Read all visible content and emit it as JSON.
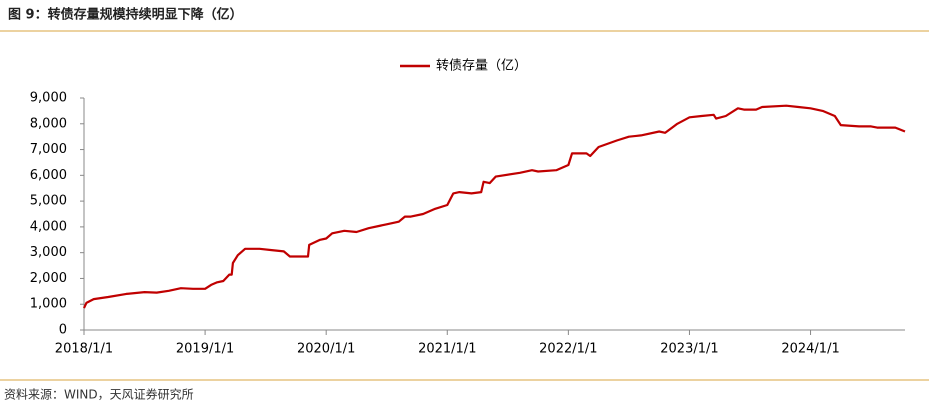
{
  "chart_data": {
    "type": "line",
    "title": "图 9：转债存量规模持续明显下降（亿）",
    "source": "资料来源：WIND，天风证券研究所",
    "x": [
      2018.0,
      2018.02,
      2018.08,
      2018.2,
      2018.35,
      2018.5,
      2018.6,
      2018.7,
      2018.8,
      2018.9,
      2019.0,
      2019.05,
      2019.1,
      2019.15,
      2019.2,
      2019.22,
      2019.23,
      2019.27,
      2019.33,
      2019.45,
      2019.55,
      2019.65,
      2019.7,
      2019.85,
      2019.86,
      2019.95,
      2020.0,
      2020.05,
      2020.15,
      2020.25,
      2020.35,
      2020.5,
      2020.6,
      2020.65,
      2020.7,
      2020.8,
      2020.9,
      2021.0,
      2021.05,
      2021.1,
      2021.2,
      2021.28,
      2021.3,
      2021.35,
      2021.4,
      2021.6,
      2021.7,
      2021.75,
      2021.9,
      2021.95,
      2022.0,
      2022.03,
      2022.15,
      2022.18,
      2022.25,
      2022.4,
      2022.5,
      2022.6,
      2022.75,
      2022.8,
      2022.9,
      2023.0,
      2023.1,
      2023.2,
      2023.22,
      2023.3,
      2023.4,
      2023.45,
      2023.55,
      2023.6,
      2023.8,
      2023.9,
      2024.0,
      2024.1,
      2024.2,
      2024.25,
      2024.4,
      2024.5,
      2024.55,
      2024.7,
      2024.78
    ],
    "series": [
      {
        "name": "转债存量（亿）",
        "color": "#c00000",
        "values": [
          850,
          1050,
          1200,
          1280,
          1400,
          1470,
          1450,
          1520,
          1620,
          1600,
          1600,
          1750,
          1850,
          1900,
          2150,
          2150,
          2600,
          2900,
          3150,
          3150,
          3100,
          3050,
          2850,
          2850,
          3300,
          3500,
          3550,
          3750,
          3850,
          3800,
          3950,
          4100,
          4200,
          4400,
          4400,
          4500,
          4700,
          4850,
          5300,
          5350,
          5300,
          5350,
          5750,
          5700,
          5950,
          6100,
          6200,
          6150,
          6200,
          6300,
          6400,
          6850,
          6850,
          6750,
          7100,
          7350,
          7500,
          7550,
          7700,
          7650,
          8000,
          8250,
          8300,
          8350,
          8200,
          8300,
          8600,
          8550,
          8550,
          8650,
          8700,
          8650,
          8600,
          8500,
          8300,
          7950,
          7900,
          7900,
          7850,
          7850,
          7700
        ]
      }
    ],
    "xlim": [
      2018.0,
      2024.78
    ],
    "xticks": [
      {
        "value": 2018,
        "label": "2018/1/1"
      },
      {
        "value": 2019,
        "label": "2019/1/1"
      },
      {
        "value": 2020,
        "label": "2020/1/1"
      },
      {
        "value": 2021,
        "label": "2021/1/1"
      },
      {
        "value": 2022,
        "label": "2022/1/1"
      },
      {
        "value": 2023,
        "label": "2023/1/1"
      },
      {
        "value": 2024,
        "label": "2024/1/1"
      }
    ],
    "ylim": [
      0,
      9000
    ],
    "yticks": [
      0,
      {
        "value": 1000,
        "label": "1,000"
      },
      {
        "value": 2000,
        "label": "2,000"
      },
      {
        "value": 3000,
        "label": "3,000"
      },
      {
        "value": 4000,
        "label": "4,000"
      },
      {
        "value": 5000,
        "label": "5,000"
      },
      {
        "value": 6000,
        "label": "6,000"
      },
      {
        "value": 7000,
        "label": "7,000"
      },
      {
        "value": 8000,
        "label": "8,000"
      },
      {
        "value": 9000,
        "label": "9,000"
      }
    ],
    "grid": false,
    "legend": "top"
  }
}
